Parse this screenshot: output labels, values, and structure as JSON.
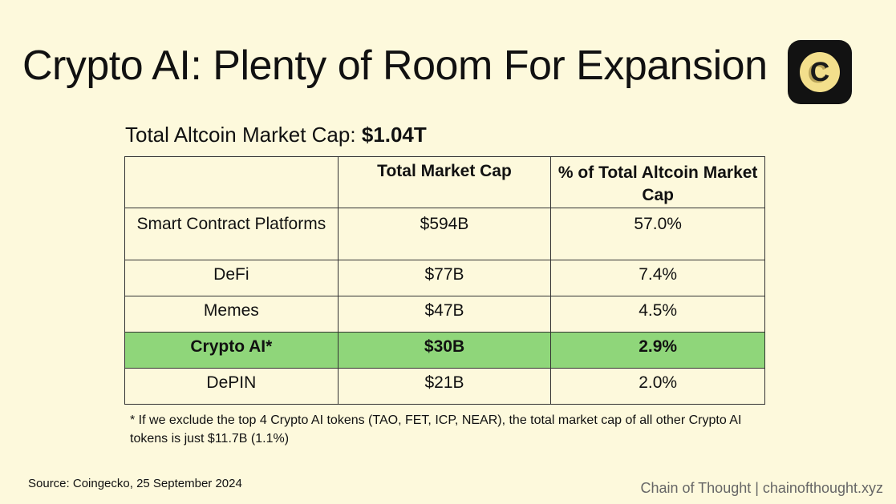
{
  "title": "Crypto AI: Plenty of Room For Expansion",
  "logo": {
    "letter": "C",
    "colors": {
      "bg": "#121212",
      "circle": "#f3df8c"
    }
  },
  "subtitle": {
    "label": "Total Altcoin Market Cap:",
    "value": "$1.04T"
  },
  "table": {
    "headers": [
      "",
      "Total Market Cap",
      "% of Total Altcoin Market Cap"
    ],
    "rows": [
      {
        "category": "Smart Contract Platforms",
        "market_cap": "$594B",
        "percent": "57.0%"
      },
      {
        "category": "DeFi",
        "market_cap": "$77B",
        "percent": "7.4%"
      },
      {
        "category": "Memes",
        "market_cap": "$47B",
        "percent": "4.5%"
      },
      {
        "category": "Crypto AI*",
        "market_cap": "$30B",
        "percent": "2.9%",
        "highlighted": true
      },
      {
        "category": "DePIN",
        "market_cap": "$21B",
        "percent": "2.0%"
      }
    ],
    "highlight_color": "#8fd67a"
  },
  "footnote": "* If we exclude the top 4 Crypto AI tokens (TAO, FET, ICP, NEAR), the total market cap of all other Crypto AI tokens is just $11.7B (1.1%)",
  "source": "Source: Coingecko, 25 September 2024",
  "branding": "Chain of Thought | chainofthought.xyz"
}
